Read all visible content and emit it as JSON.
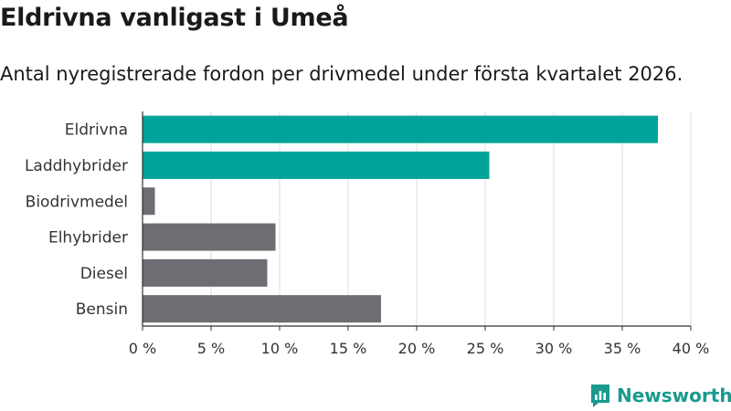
{
  "chart_data": {
    "type": "bar",
    "orientation": "horizontal",
    "title": "Eldrivna vanligast i Umeå",
    "subtitle": "Antal nyregistrerade fordon per drivmedel under första kvartalet 2026.",
    "categories": [
      "Eldrivna",
      "Laddhybrider",
      "Biodrivmedel",
      "Elhybrider",
      "Diesel",
      "Bensin"
    ],
    "values": [
      37.6,
      25.3,
      0.9,
      9.7,
      9.1,
      17.4
    ],
    "value_unit": "%",
    "xlim": [
      0,
      40
    ],
    "xticks": [
      "0 %",
      "5 %",
      "10 %",
      "15 %",
      "20 %",
      "25 %",
      "30 %",
      "35 %",
      "40 %"
    ],
    "xtick_values": [
      0,
      5,
      10,
      15,
      20,
      25,
      30,
      35,
      40
    ],
    "grid": "vertical",
    "bar_colors": [
      "#00a399",
      "#00a399",
      "#6d6d73",
      "#6d6d73",
      "#6d6d73",
      "#6d6d73"
    ],
    "gridline_color": "#dddddd",
    "axis_color": "#333333"
  },
  "brand": {
    "name": "Newsworthy",
    "icon": "newsworthy-logo-icon",
    "color": "#1a9a8e"
  }
}
